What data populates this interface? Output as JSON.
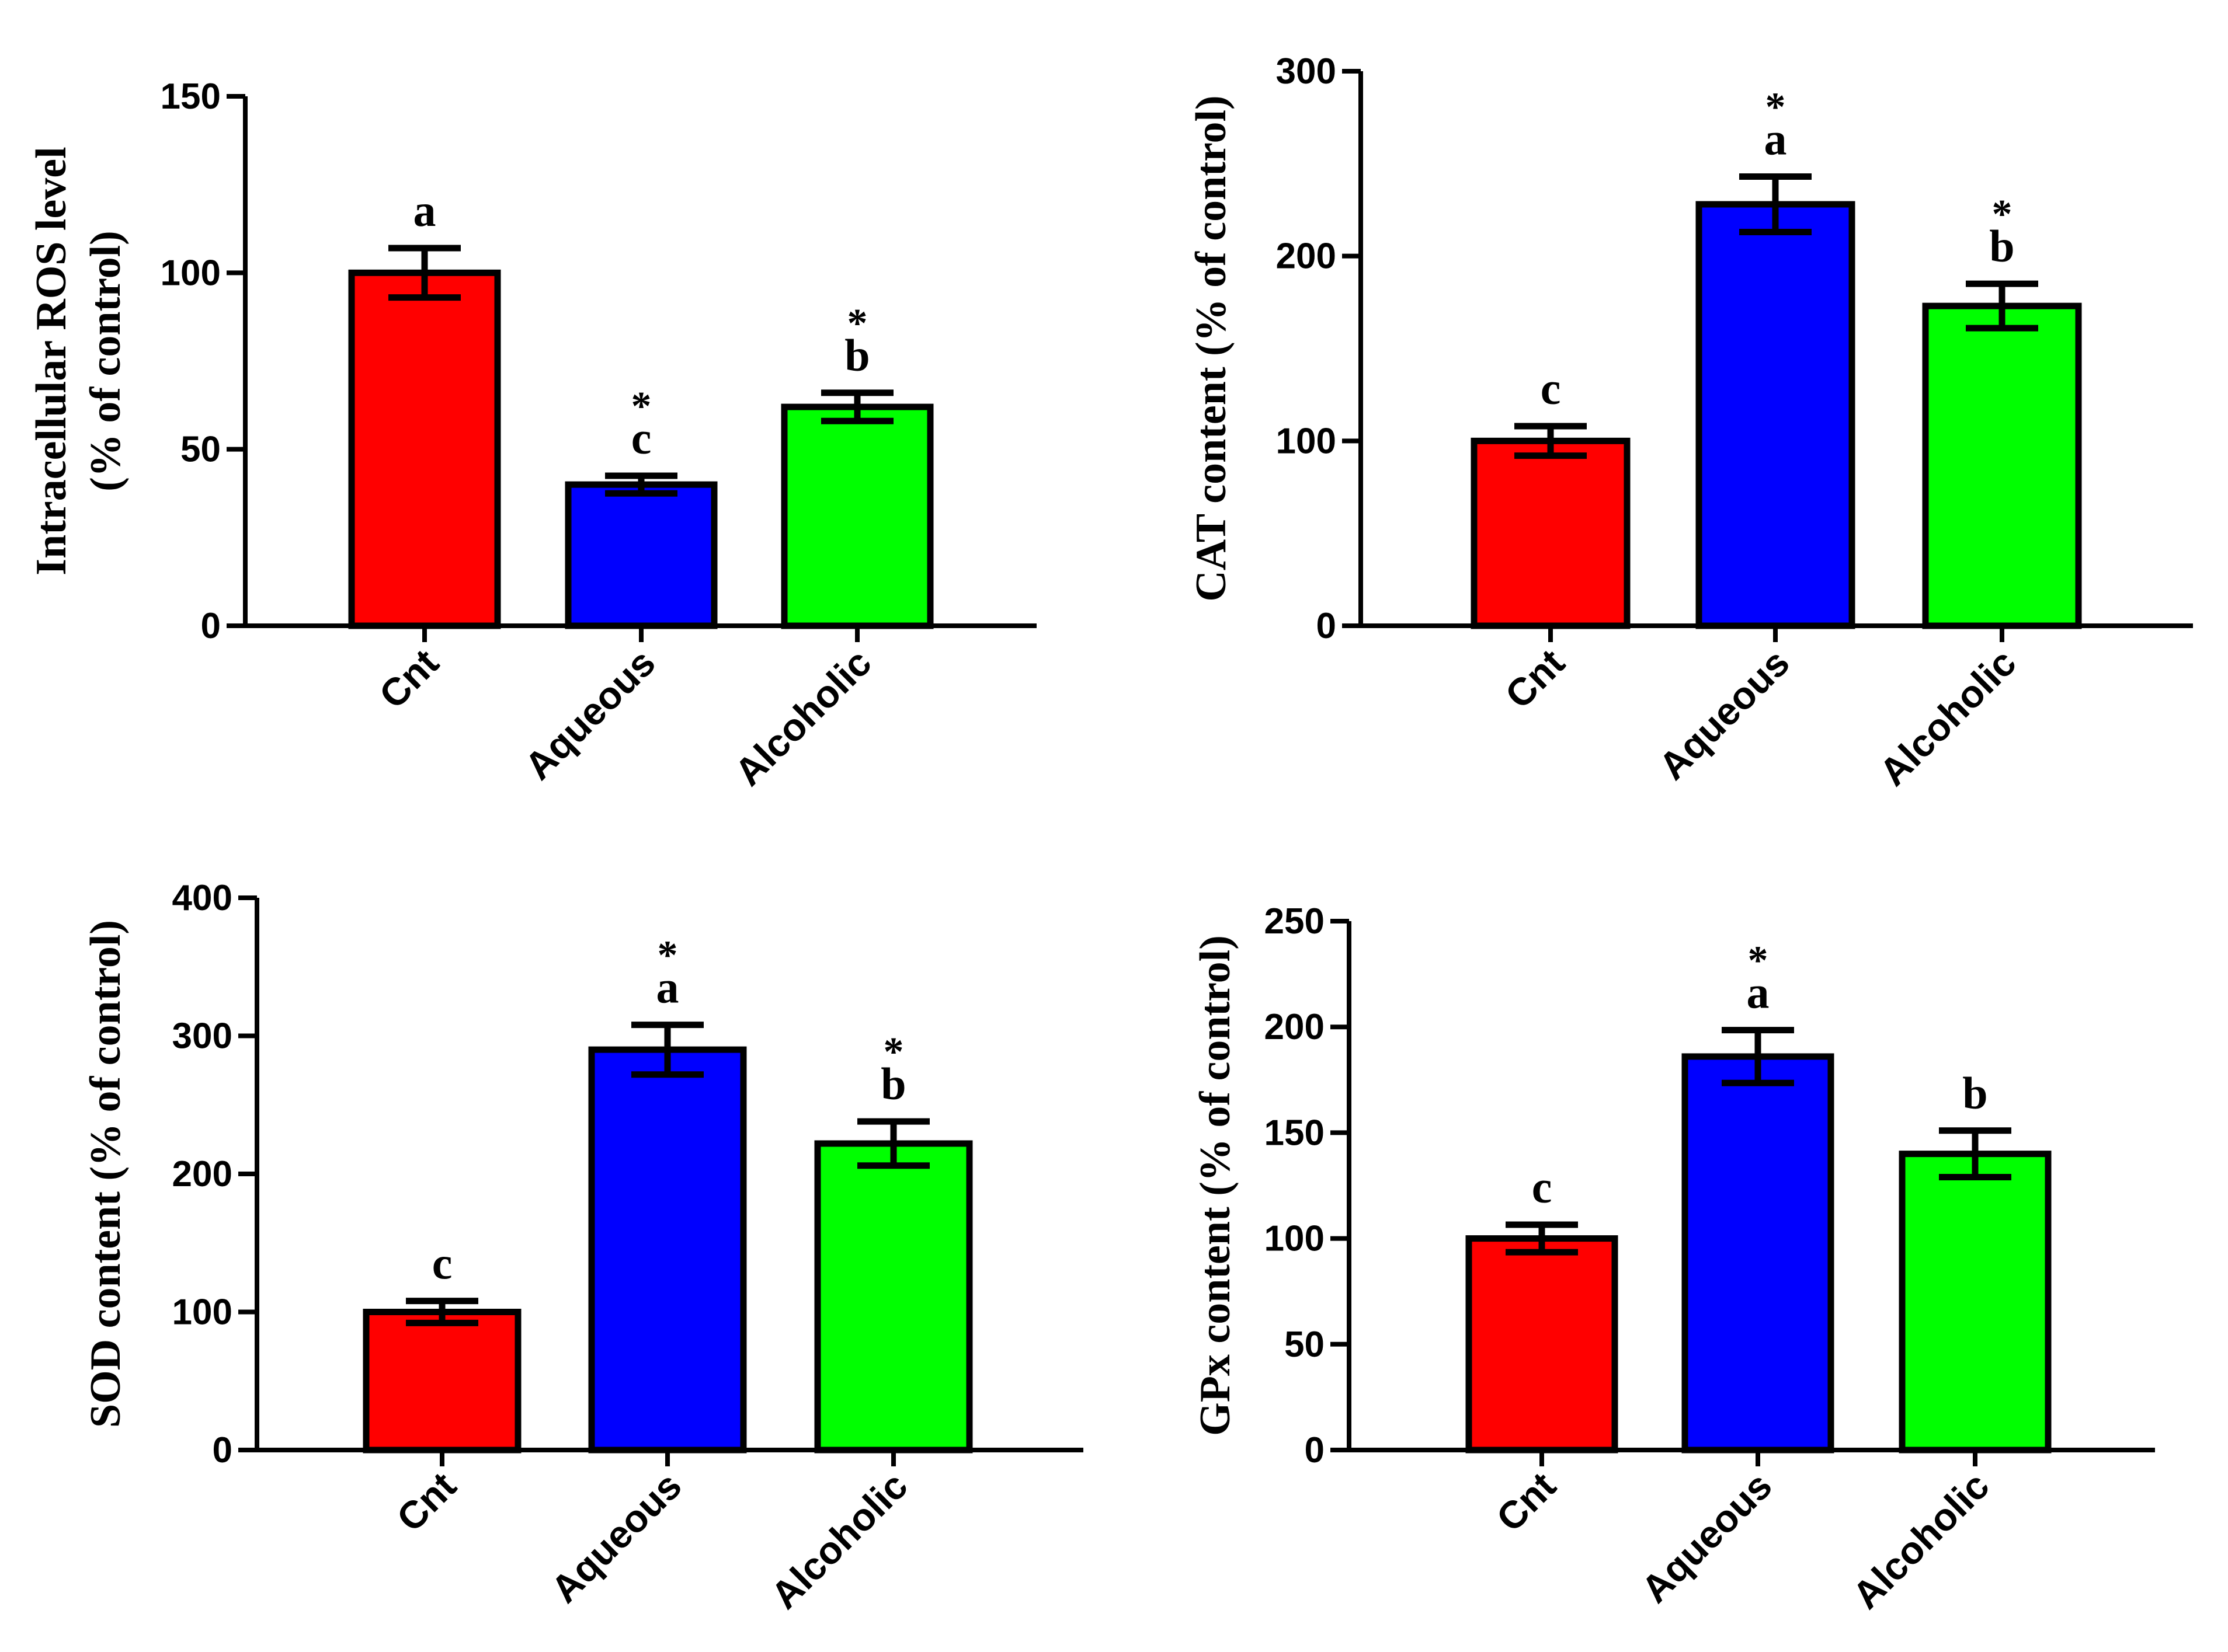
{
  "chart_data": [
    {
      "id": "ros",
      "type": "bar",
      "categories": [
        "Cnt",
        "Aqueous",
        "Alcoholic"
      ],
      "values": [
        100,
        40,
        62
      ],
      "errors": [
        7,
        2.5,
        4
      ],
      "colors": [
        "#ff0000",
        "#0000ff",
        "#00ff00"
      ],
      "ylim": [
        0,
        150
      ],
      "yticks": [
        0,
        50,
        100,
        150
      ],
      "ylabel_lines": [
        "Intracellular ROS level",
        "(% of control)"
      ],
      "letters": [
        "a",
        "c",
        "b"
      ],
      "stars": [
        "",
        "*",
        "*"
      ],
      "xlabel": "",
      "title": ""
    },
    {
      "id": "cat",
      "type": "bar",
      "categories": [
        "Cnt",
        "Aqueous",
        "Alcoholic"
      ],
      "values": [
        100,
        228,
        173
      ],
      "errors": [
        8,
        15,
        12
      ],
      "colors": [
        "#ff0000",
        "#0000ff",
        "#00ff00"
      ],
      "ylim": [
        0,
        300
      ],
      "yticks": [
        0,
        100,
        200,
        300
      ],
      "ylabel_lines": [
        "CAT content (% of control)"
      ],
      "letters": [
        "c",
        "a",
        "b"
      ],
      "stars": [
        "",
        "*",
        "*"
      ],
      "xlabel": "",
      "title": ""
    },
    {
      "id": "sod",
      "type": "bar",
      "categories": [
        "Cnt",
        "Aqueous",
        "Alcoholic"
      ],
      "values": [
        100,
        290,
        222
      ],
      "errors": [
        8,
        18,
        16
      ],
      "colors": [
        "#ff0000",
        "#0000ff",
        "#00ff00"
      ],
      "ylim": [
        0,
        400
      ],
      "yticks": [
        0,
        100,
        200,
        300,
        400
      ],
      "ylabel_lines": [
        "SOD content (% of control)"
      ],
      "letters": [
        "c",
        "a",
        "b"
      ],
      "stars": [
        "",
        "*",
        "*"
      ],
      "xlabel": "",
      "title": ""
    },
    {
      "id": "gpx",
      "type": "bar",
      "categories": [
        "Cnt",
        "Aqueous",
        "Alcoholic"
      ],
      "values": [
        100,
        186,
        140
      ],
      "errors": [
        6.5,
        12.5,
        11
      ],
      "colors": [
        "#ff0000",
        "#0000ff",
        "#00ff00"
      ],
      "ylim": [
        0,
        250
      ],
      "yticks": [
        0,
        50,
        100,
        150,
        200,
        250
      ],
      "ylabel_lines": [
        "GPx content (% of control)"
      ],
      "letters": [
        "c",
        "a",
        "b"
      ],
      "stars": [
        "",
        "*",
        ""
      ],
      "xlabel": "",
      "title": ""
    }
  ]
}
